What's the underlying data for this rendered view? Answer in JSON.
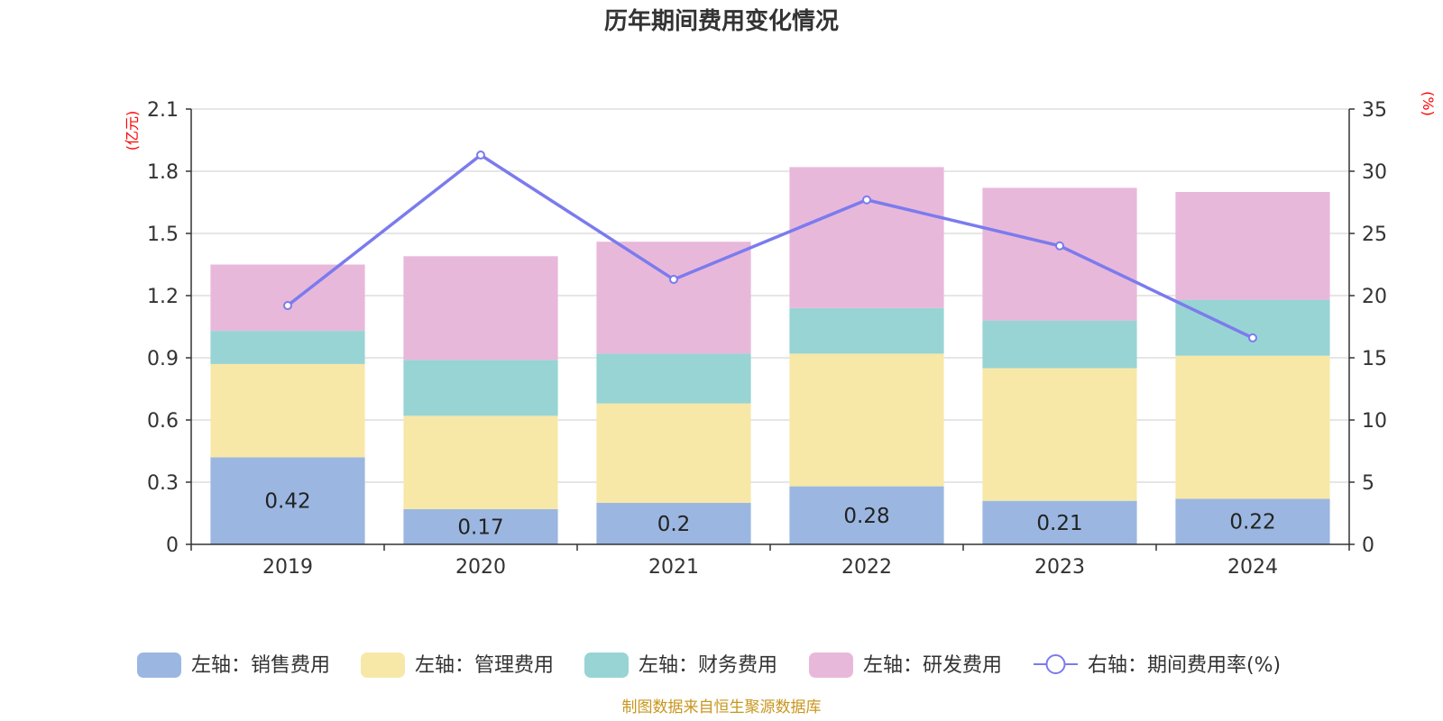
{
  "chart_data": {
    "type": "bar",
    "stacked": true,
    "title": "历年期间费用变化情况",
    "categories": [
      "2019",
      "2020",
      "2021",
      "2022",
      "2023",
      "2024"
    ],
    "y_left": {
      "unit": "(亿元)",
      "min": 0,
      "max": 2.1,
      "ticks": [
        "0",
        "0.3",
        "0.6",
        "0.9",
        "1.2",
        "1.5",
        "1.8",
        "2.1"
      ]
    },
    "y_right": {
      "unit": "(%)",
      "min": 0,
      "max": 35,
      "ticks": [
        "0",
        "5",
        "10",
        "15",
        "20",
        "25",
        "30",
        "35"
      ]
    },
    "grid": true,
    "legend_position": "bottom",
    "series": [
      {
        "name": "左轴：销售费用",
        "type": "bar",
        "axis": "left",
        "color": "#9bb7e1",
        "values": [
          0.42,
          0.17,
          0.2,
          0.28,
          0.21,
          0.22
        ],
        "labels": [
          "0.42",
          "0.17",
          "0.2",
          "0.28",
          "0.21",
          "0.22"
        ]
      },
      {
        "name": "左轴：管理费用",
        "type": "bar",
        "axis": "left",
        "color": "#f7e8a8",
        "values": [
          0.45,
          0.45,
          0.48,
          0.64,
          0.64,
          0.69
        ]
      },
      {
        "name": "左轴：财务费用",
        "type": "bar",
        "axis": "left",
        "color": "#98d4d4",
        "values": [
          0.16,
          0.27,
          0.24,
          0.22,
          0.23,
          0.27
        ]
      },
      {
        "name": "左轴：研发费用",
        "type": "bar",
        "axis": "left",
        "color": "#e8b8da",
        "values": [
          0.32,
          0.5,
          0.54,
          0.68,
          0.64,
          0.52
        ]
      },
      {
        "name": "右轴：期间费用率(%)",
        "type": "line",
        "axis": "right",
        "color": "#7b7bee",
        "values": [
          19.2,
          31.3,
          21.3,
          27.7,
          24.0,
          16.6
        ]
      }
    ],
    "source": "制图数据来自恒生聚源数据库"
  }
}
